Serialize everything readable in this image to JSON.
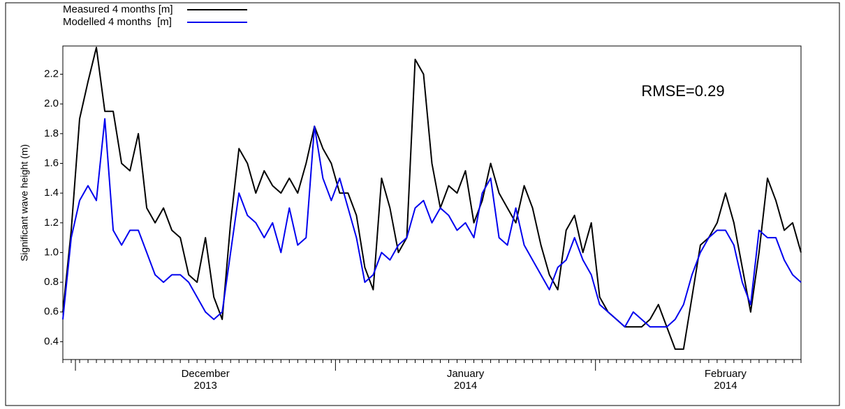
{
  "chart_data": {
    "type": "line",
    "y_label": "Significant wave height (m)",
    "annotation": "RMSE=0.29",
    "categories": [
      null,
      null,
      null,
      null,
      null,
      null,
      null,
      null,
      null,
      null,
      null,
      null,
      null,
      null,
      null,
      null,
      null,
      "December\n2013",
      null,
      null,
      null,
      null,
      null,
      null,
      null,
      null,
      null,
      null,
      null,
      null,
      null,
      null,
      null,
      null,
      null,
      null,
      null,
      null,
      null,
      null,
      null,
      null,
      null,
      null,
      null,
      null,
      null,
      null,
      "January\n2014",
      null,
      null,
      null,
      null,
      null,
      null,
      null,
      null,
      null,
      null,
      null,
      null,
      null,
      null,
      null,
      null,
      null,
      null,
      null,
      null,
      null,
      null,
      null,
      null,
      null,
      null,
      null,
      null,
      null,
      null,
      "February\n2014",
      null,
      null,
      null,
      null,
      null,
      null,
      null,
      null,
      null
    ],
    "series": [
      {
        "name": "Measured 4 months [m]",
        "color": "#000000",
        "values": [
          0.6,
          1.15,
          1.9,
          2.15,
          2.38,
          1.95,
          1.95,
          1.6,
          1.55,
          1.8,
          1.3,
          1.2,
          1.3,
          1.15,
          1.1,
          0.85,
          0.8,
          1.1,
          0.7,
          0.55,
          1.2,
          1.7,
          1.6,
          1.4,
          1.55,
          1.45,
          1.4,
          1.5,
          1.4,
          1.6,
          1.85,
          1.7,
          1.6,
          1.4,
          1.4,
          1.25,
          0.9,
          0.75,
          1.5,
          1.3,
          1.0,
          1.1,
          2.3,
          2.2,
          1.6,
          1.3,
          1.45,
          1.4,
          1.55,
          1.2,
          1.35,
          1.6,
          1.4,
          1.3,
          1.2,
          1.45,
          1.3,
          1.05,
          0.85,
          0.75,
          1.15,
          1.25,
          1.0,
          1.2,
          0.7,
          0.6,
          0.55,
          0.5,
          0.5,
          0.5,
          0.55,
          0.65,
          0.5,
          0.35,
          0.35,
          0.7,
          1.05,
          1.1,
          1.2,
          1.4,
          1.2,
          0.9,
          0.6,
          1.0,
          1.5,
          1.35,
          1.15,
          1.2,
          1.0
        ]
      },
      {
        "name": "Modelled 4 months  [m]",
        "color": "#0000ee",
        "values": [
          0.55,
          1.1,
          1.35,
          1.45,
          1.35,
          1.9,
          1.15,
          1.05,
          1.15,
          1.15,
          1.0,
          0.85,
          0.8,
          0.85,
          0.85,
          0.8,
          0.7,
          0.6,
          0.55,
          0.6,
          1.0,
          1.4,
          1.25,
          1.2,
          1.1,
          1.2,
          1.0,
          1.3,
          1.05,
          1.1,
          1.85,
          1.5,
          1.35,
          1.5,
          1.3,
          1.1,
          0.8,
          0.85,
          1.0,
          0.95,
          1.05,
          1.1,
          1.3,
          1.35,
          1.2,
          1.3,
          1.25,
          1.15,
          1.2,
          1.1,
          1.4,
          1.5,
          1.1,
          1.05,
          1.3,
          1.05,
          0.95,
          0.85,
          0.75,
          0.9,
          0.95,
          1.1,
          0.95,
          0.85,
          0.65,
          0.6,
          0.55,
          0.5,
          0.6,
          0.55,
          0.5,
          0.5,
          0.5,
          0.55,
          0.65,
          0.85,
          1.0,
          1.1,
          1.15,
          1.15,
          1.05,
          0.8,
          0.65,
          1.15,
          1.1,
          1.1,
          0.95,
          0.85,
          0.8
        ]
      }
    ],
    "ylim": [
      0.28,
      2.39
    ],
    "yticks": [
      0.4,
      0.6,
      0.8,
      {
        "value": 1.0,
        "label": "1.0"
      },
      1.2,
      1.4,
      1.6,
      1.8,
      {
        "value": 2.0,
        "label": "2.0"
      },
      2.2
    ],
    "grid": false
  }
}
